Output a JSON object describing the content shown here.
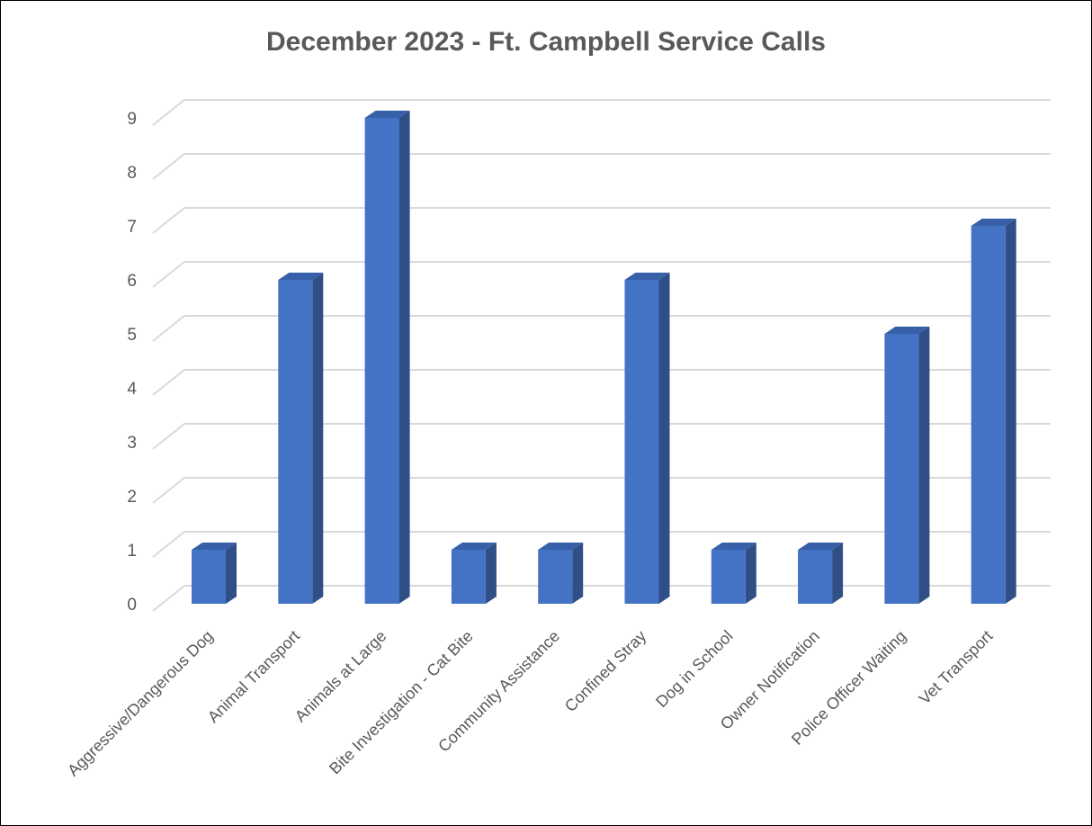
{
  "chart_data": {
    "type": "bar",
    "title": "December 2023 - Ft. Campbell Service Calls",
    "xlabel": "",
    "ylabel": "",
    "ylim": [
      0,
      9
    ],
    "yticks": [
      "0",
      "1",
      "2",
      "3",
      "4",
      "5",
      "6",
      "7",
      "8",
      "9"
    ],
    "grid": true,
    "legend": "none",
    "categories": [
      "Aggressive/Dangerous Dog",
      "Animal Transport",
      "Animals at Large",
      "Bite Investigation - Cat Bite",
      "Community Assistance",
      "Confined Stray",
      "Dog in School",
      "Owner Notification",
      "Police Officer Waiting",
      "Vet Transport"
    ],
    "values": [
      1,
      6,
      9,
      1,
      1,
      6,
      1,
      1,
      5,
      7
    ],
    "colors": {
      "bar_front": "#4472C4",
      "bar_side": "#2F4F86",
      "bar_top": "#3760A8",
      "grid": "#D9D9D9",
      "text": "#595959"
    }
  }
}
